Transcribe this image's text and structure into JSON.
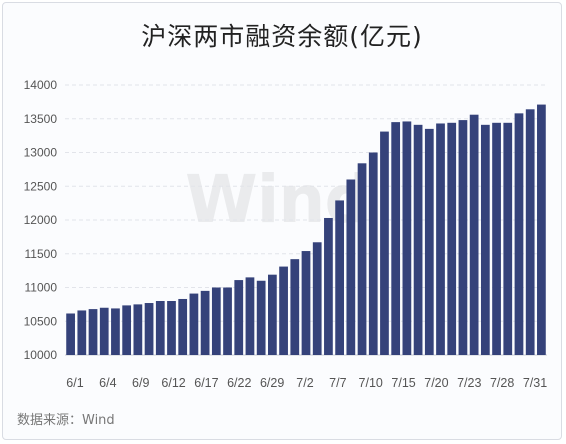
{
  "title": "沪深两市融资余额(亿元)",
  "source": "数据来源：Wind",
  "watermark": "Wind",
  "colors": {
    "bar": "#35427a",
    "grid": "#e2e4ea",
    "axis": "#c8cbd3",
    "text": "#555555"
  },
  "chart_data": {
    "type": "bar",
    "title": "沪深两市融资余额(亿元)",
    "ylim": [
      10000,
      14000
    ],
    "yticks": [
      10000,
      10500,
      11000,
      11500,
      12000,
      12500,
      13000,
      13500,
      14000
    ],
    "grid": "horizontal dashed",
    "legend": "none",
    "xtick_labels": [
      "6/1",
      "6/4",
      "6/9",
      "6/12",
      "6/17",
      "6/22",
      "6/29",
      "7/2",
      "7/7",
      "7/10",
      "7/15",
      "7/20",
      "7/23",
      "7/28",
      "7/31"
    ],
    "values": [
      10615,
      10660,
      10680,
      10700,
      10690,
      10735,
      10750,
      10770,
      10800,
      10800,
      10830,
      10910,
      10950,
      11000,
      11000,
      11110,
      11150,
      11100,
      11190,
      11310,
      11420,
      11540,
      11670,
      12030,
      12290,
      12600,
      12840,
      13000,
      13310,
      13450,
      13460,
      13410,
      13350,
      13430,
      13440,
      13480,
      13560,
      13410,
      13440,
      13440,
      13580,
      13640,
      13710
    ]
  }
}
